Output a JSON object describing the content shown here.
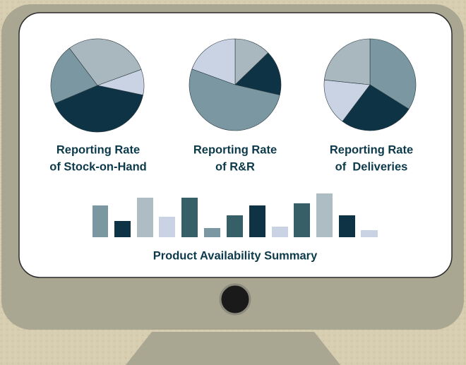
{
  "labels": [
    {
      "lines": [
        "Reporting Rate",
        "of Stock-on-Hand"
      ]
    },
    {
      "lines": [
        "Reporting Rate",
        "of R&R"
      ]
    },
    {
      "lines": [
        "Reporting Rate",
        "of  Deliveries"
      ]
    }
  ],
  "summary": "Product Availability Summary"
}
